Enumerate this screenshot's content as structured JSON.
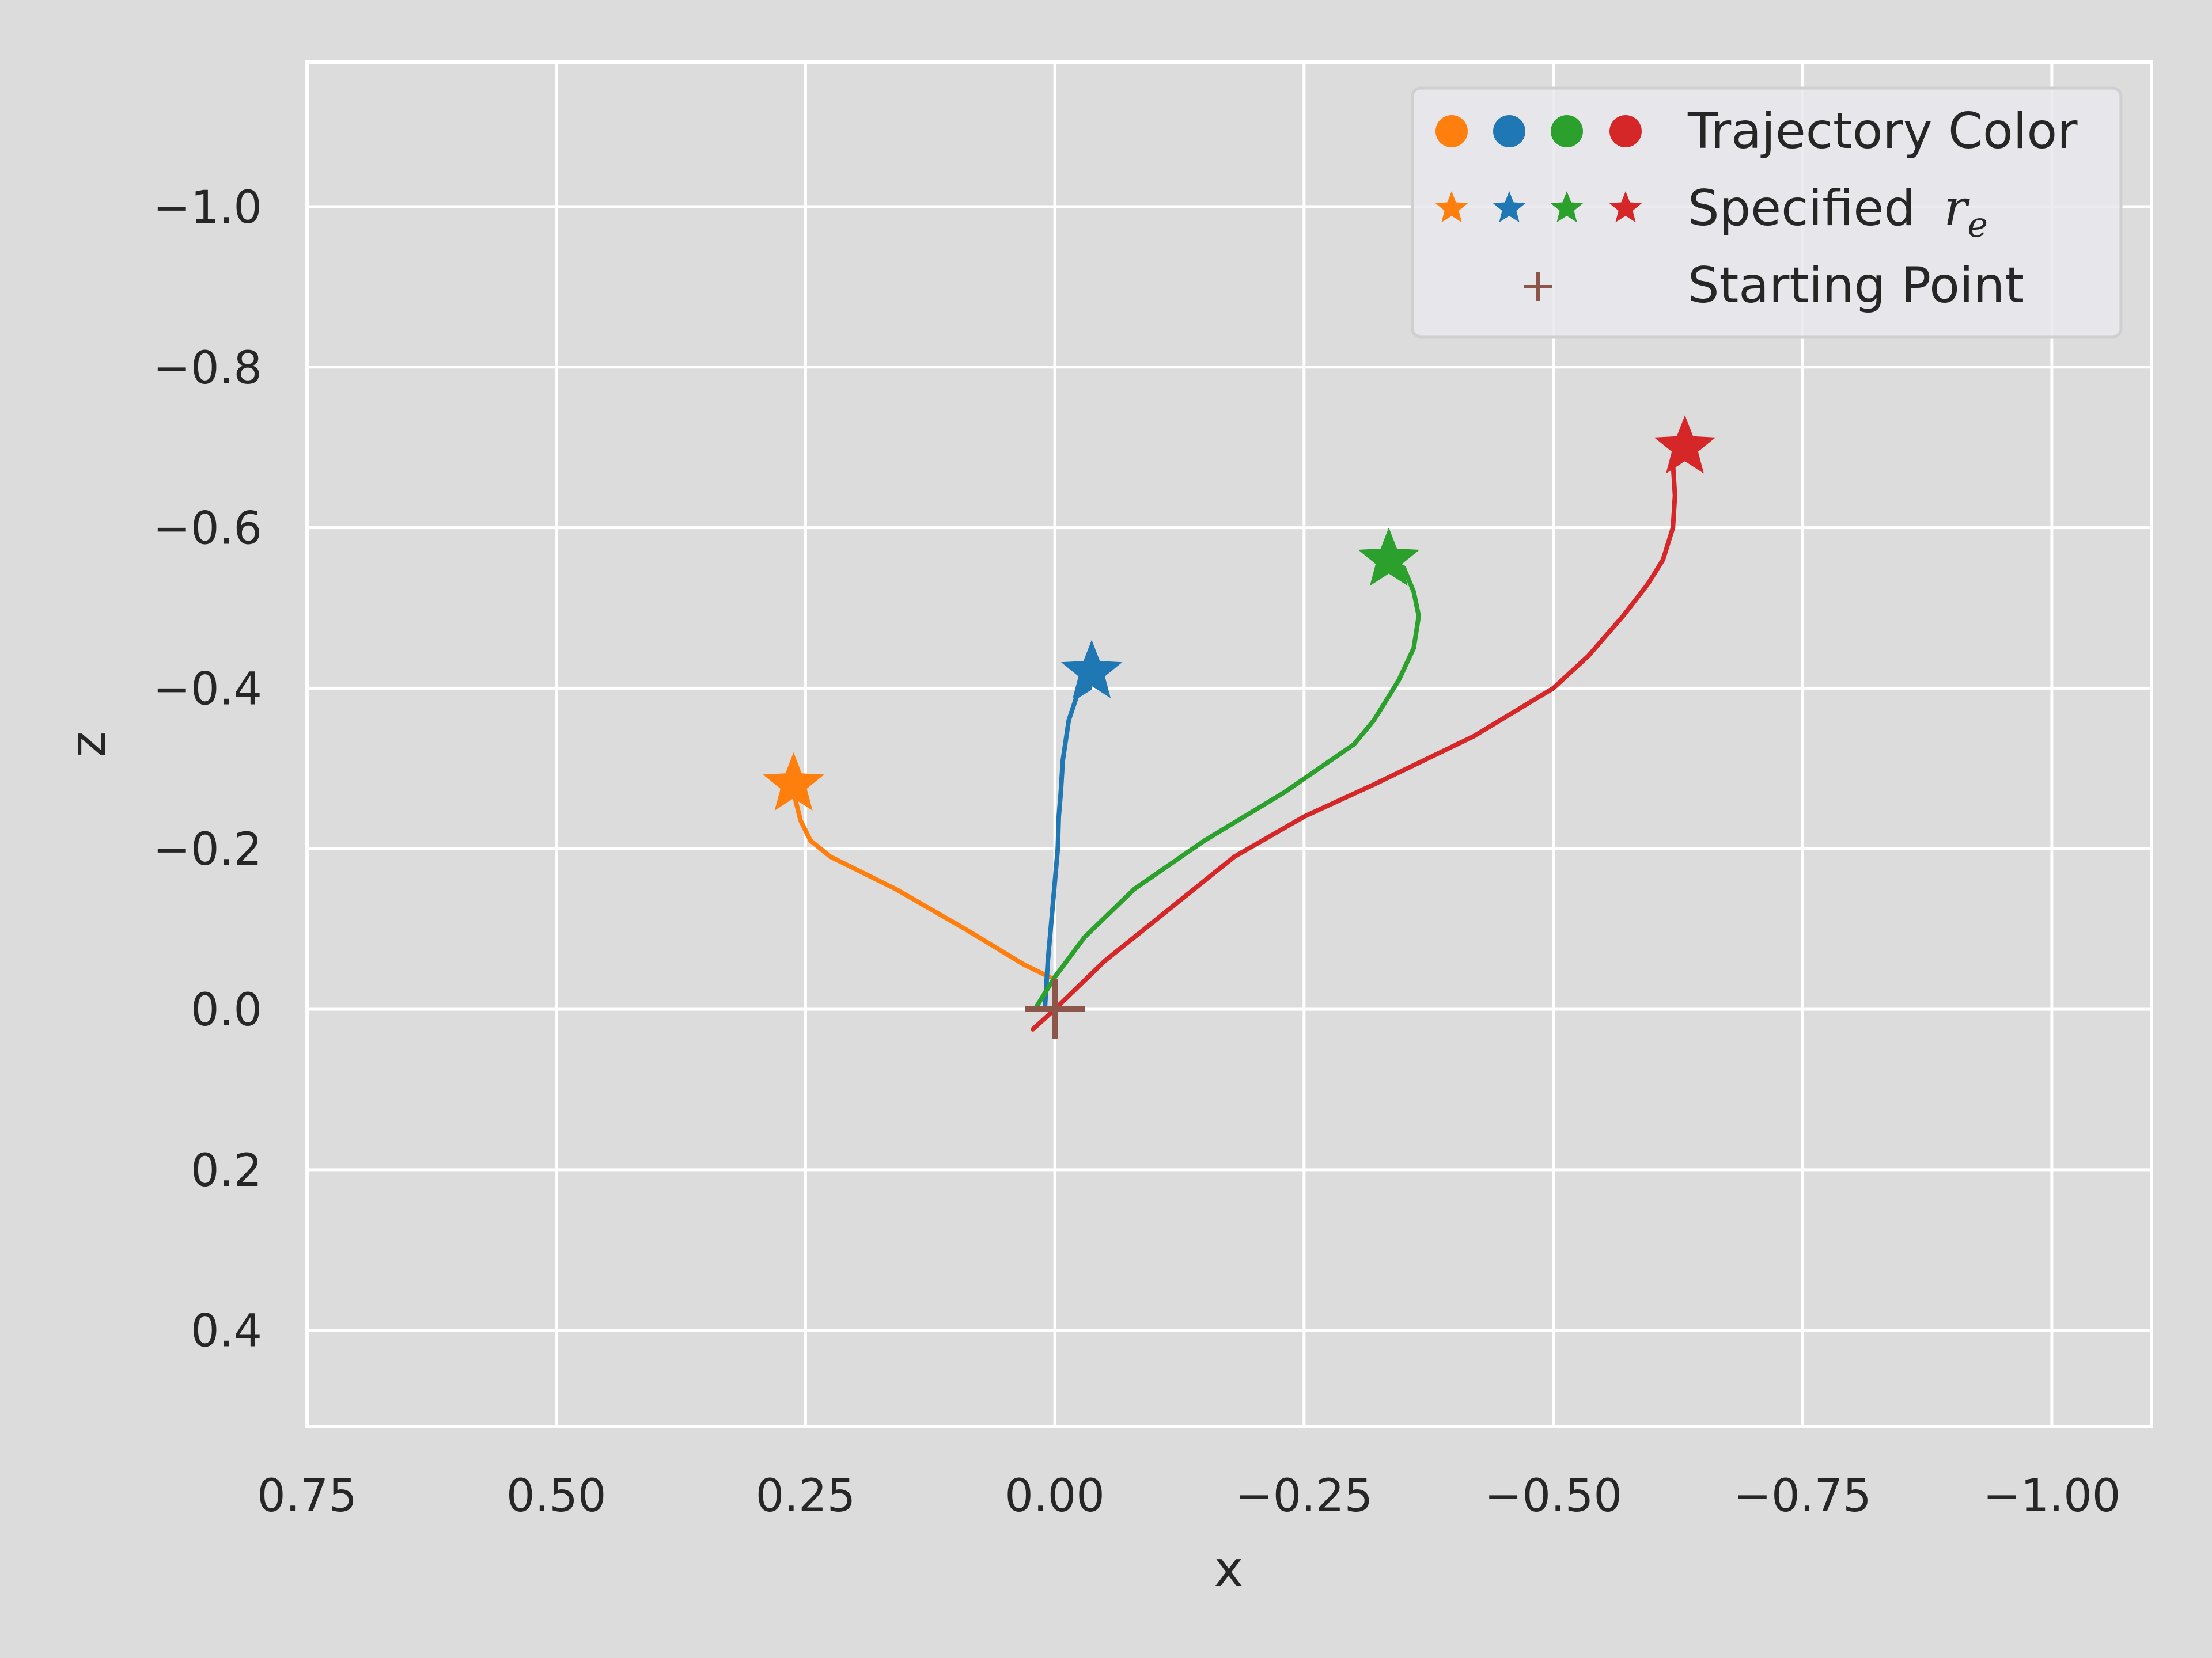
{
  "chart_data": {
    "type": "line",
    "title": "",
    "xlabel": "x",
    "ylabel": "z",
    "x_inverted": true,
    "y_inverted": true,
    "xlim": [
      0.75,
      -1.1
    ],
    "ylim": [
      0.52,
      -1.18
    ],
    "xticks": [
      0.75,
      0.5,
      0.25,
      0.0,
      -0.25,
      -0.5,
      -0.75,
      -1.0
    ],
    "xtick_labels": [
      "0.75",
      "0.50",
      "0.25",
      "0.00",
      "−0.25",
      "−0.50",
      "−0.75",
      "−1.00"
    ],
    "yticks": [
      -1.0,
      -0.8,
      -0.6,
      -0.4,
      -0.2,
      0.0,
      0.2,
      0.4
    ],
    "ytick_labels": [
      "−1.0",
      "−0.8",
      "−0.6",
      "−0.4",
      "−0.2",
      "0.0",
      "0.2",
      "0.4"
    ],
    "grid": true,
    "legend_position": "top-right",
    "colors": {
      "orange": "#ff7f0e",
      "blue": "#1f77b4",
      "green": "#2ca02c",
      "red": "#d62728",
      "start": "#8c564b",
      "background": "#dcdcdc",
      "grid": "#ffffff"
    },
    "series": [
      {
        "color": "#ff7f0e",
        "points": [
          [
            0.005,
            -0.04
          ],
          [
            0.03,
            -0.055
          ],
          [
            0.09,
            -0.1
          ],
          [
            0.16,
            -0.15
          ],
          [
            0.225,
            -0.19
          ],
          [
            0.245,
            -0.21
          ],
          [
            0.255,
            -0.235
          ],
          [
            0.26,
            -0.26
          ],
          [
            0.262,
            -0.28
          ]
        ],
        "target": [
          0.262,
          -0.28
        ]
      },
      {
        "color": "#1f77b4",
        "points": [
          [
            0.01,
            0.0
          ],
          [
            0.007,
            -0.06
          ],
          [
            -0.003,
            -0.2
          ],
          [
            -0.004,
            -0.24
          ],
          [
            -0.006,
            -0.27
          ],
          [
            -0.008,
            -0.31
          ],
          [
            -0.014,
            -0.36
          ],
          [
            -0.022,
            -0.39
          ],
          [
            -0.035,
            -0.4
          ],
          [
            -0.037,
            -0.42
          ]
        ],
        "target": [
          -0.037,
          -0.42
        ]
      },
      {
        "color": "#2ca02c",
        "points": [
          [
            0.02,
            0.0
          ],
          [
            0.0,
            -0.04
          ],
          [
            -0.03,
            -0.09
          ],
          [
            -0.08,
            -0.15
          ],
          [
            -0.15,
            -0.21
          ],
          [
            -0.23,
            -0.27
          ],
          [
            -0.3,
            -0.33
          ],
          [
            -0.32,
            -0.36
          ],
          [
            -0.345,
            -0.41
          ],
          [
            -0.36,
            -0.45
          ],
          [
            -0.365,
            -0.49
          ],
          [
            -0.36,
            -0.52
          ],
          [
            -0.35,
            -0.55
          ],
          [
            -0.335,
            -0.56
          ]
        ],
        "target": [
          -0.335,
          -0.56
        ]
      },
      {
        "color": "#d62728",
        "points": [
          [
            0.022,
            0.025
          ],
          [
            0.0,
            0.0
          ],
          [
            -0.05,
            -0.06
          ],
          [
            -0.1,
            -0.11
          ],
          [
            -0.18,
            -0.19
          ],
          [
            -0.25,
            -0.24
          ],
          [
            -0.32,
            -0.28
          ],
          [
            -0.42,
            -0.34
          ],
          [
            -0.5,
            -0.4
          ],
          [
            -0.535,
            -0.44
          ],
          [
            -0.57,
            -0.49
          ],
          [
            -0.595,
            -0.53
          ],
          [
            -0.61,
            -0.56
          ],
          [
            -0.62,
            -0.6
          ],
          [
            -0.622,
            -0.64
          ],
          [
            -0.62,
            -0.68
          ],
          [
            -0.625,
            -0.7
          ]
        ],
        "target": [
          -0.632,
          -0.7
        ]
      }
    ],
    "start_point": [
      0.0,
      0.0
    ],
    "legend": [
      {
        "kind": "dots",
        "label": "Trajectory Color"
      },
      {
        "kind": "stars",
        "label": "Specified ",
        "label_math": "r",
        "label_sub": "e"
      },
      {
        "kind": "plus",
        "label": "Starting Point"
      }
    ]
  }
}
